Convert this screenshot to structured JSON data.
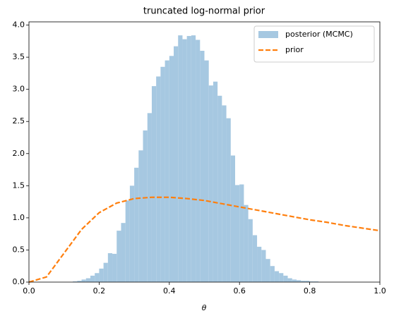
{
  "chart_data": {
    "type": "histogram",
    "title": "truncated log-normal prior",
    "xlabel": "θ",
    "xlim": [
      0,
      1
    ],
    "ylim": [
      0,
      4.05
    ],
    "xticks": [
      {
        "value": 0,
        "label": "0.0"
      },
      0.2,
      0.4,
      0.6,
      0.8,
      {
        "value": 1,
        "label": "1.0"
      }
    ],
    "yticks": [
      {
        "value": 0,
        "label": "0.0"
      },
      0.5,
      {
        "value": 1,
        "label": "1.0"
      },
      1.5,
      {
        "value": 2,
        "label": "2.0"
      },
      2.5,
      {
        "value": 3,
        "label": "3.0"
      },
      3.5,
      {
        "value": 4,
        "label": "4.0"
      }
    ],
    "legend": "upper right",
    "series": [
      {
        "name": "posterior (MCMC)",
        "type": "histogram",
        "color": "#a6c8e1",
        "bins": [
          0.125,
          0.1375,
          0.15,
          0.1625,
          0.175,
          0.1875,
          0.2,
          0.2125,
          0.225,
          0.2375,
          0.25,
          0.2625,
          0.275,
          0.2875,
          0.3,
          0.3125,
          0.325,
          0.3375,
          0.35,
          0.3625,
          0.375,
          0.3875,
          0.4,
          0.4125,
          0.425,
          0.4375,
          0.45,
          0.4625,
          0.475,
          0.4875,
          0.5,
          0.5125,
          0.525,
          0.5375,
          0.55,
          0.5625,
          0.575,
          0.5875,
          0.6,
          0.6125,
          0.625,
          0.6375,
          0.65,
          0.6625,
          0.675,
          0.6875,
          0.7,
          0.7125,
          0.725,
          0.7375,
          0.75,
          0.7625,
          0.775,
          0.7875,
          0.8,
          0.8125,
          0.825
        ],
        "values": [
          0.01,
          0.02,
          0.04,
          0.06,
          0.1,
          0.14,
          0.21,
          0.3,
          0.45,
          0.44,
          0.8,
          0.92,
          1.27,
          1.5,
          1.78,
          2.05,
          2.36,
          2.63,
          3.05,
          3.2,
          3.35,
          3.45,
          3.52,
          3.67,
          3.84,
          3.78,
          3.83,
          3.84,
          3.77,
          3.6,
          3.45,
          3.06,
          3.12,
          2.9,
          2.75,
          2.55,
          1.97,
          1.51,
          1.52,
          1.2,
          0.98,
          0.73,
          0.55,
          0.5,
          0.36,
          0.25,
          0.17,
          0.14,
          0.1,
          0.06,
          0.04,
          0.03,
          0.02,
          0.02,
          0.01,
          0.01
        ]
      },
      {
        "name": "prior",
        "type": "line",
        "color": "#ff7f0e",
        "linestyle": "dashed",
        "x": [
          0,
          0.05,
          0.1,
          0.15,
          0.2,
          0.25,
          0.3,
          0.35,
          0.4,
          0.45,
          0.5,
          0.55,
          0.6,
          0.65,
          0.7,
          0.75,
          0.8,
          0.85,
          0.9,
          0.95,
          1
        ],
        "values": [
          0,
          0.08,
          0.45,
          0.82,
          1.08,
          1.23,
          1.3,
          1.32,
          1.32,
          1.3,
          1.27,
          1.22,
          1.17,
          1.12,
          1.07,
          1.02,
          0.97,
          0.93,
          0.88,
          0.84,
          0.8
        ]
      }
    ]
  }
}
